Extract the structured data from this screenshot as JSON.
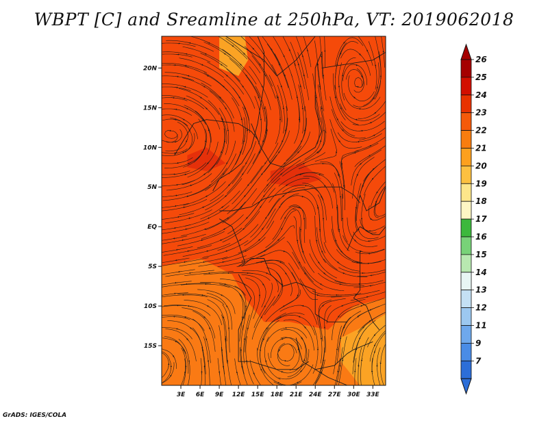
{
  "title": "WBPT [C] and Sreamline at 250hPa, VT: 2019062018",
  "credit": "GrADS: IGES/COLA",
  "map": {
    "lon_range": [
      0,
      35
    ],
    "lat_range": [
      -20,
      24
    ],
    "lat_ticks": [
      {
        "lat": 20,
        "label": "20N"
      },
      {
        "lat": 15,
        "label": "15N"
      },
      {
        "lat": 10,
        "label": "10N"
      },
      {
        "lat": 5,
        "label": "5N"
      },
      {
        "lat": 0,
        "label": "EQ"
      },
      {
        "lat": -5,
        "label": "5S"
      },
      {
        "lat": -10,
        "label": "10S"
      },
      {
        "lat": -15,
        "label": "15S"
      }
    ],
    "lon_ticks": [
      {
        "lon": 3,
        "label": "3E"
      },
      {
        "lon": 6,
        "label": "6E"
      },
      {
        "lon": 9,
        "label": "9E"
      },
      {
        "lon": 12,
        "label": "12E"
      },
      {
        "lon": 15,
        "label": "15E"
      },
      {
        "lon": 18,
        "label": "18E"
      },
      {
        "lon": 21,
        "label": "21E"
      },
      {
        "lon": 24,
        "label": "24E"
      },
      {
        "lon": 27,
        "label": "27E"
      },
      {
        "lon": 30,
        "label": "30E"
      },
      {
        "lon": 33,
        "label": "33E"
      }
    ],
    "field_colors": {
      "dominant": "#f54a0a",
      "warm_core": "#e5300a",
      "cooler_south": "#fa7a14",
      "cool_patch": "#fba324"
    }
  },
  "colorbar": {
    "labels": [
      "26",
      "25",
      "24",
      "23",
      "22",
      "21",
      "20",
      "19",
      "18",
      "17",
      "16",
      "15",
      "14",
      "13",
      "12",
      "11",
      "9",
      "7"
    ],
    "colors": [
      "#a50000",
      "#d20f00",
      "#e83200",
      "#f55a0a",
      "#f87d0f",
      "#fca01e",
      "#fcc040",
      "#fde68a",
      "#fdf6c4",
      "#3cb83c",
      "#78d278",
      "#b8e8b0",
      "#e8f6f4",
      "#c4e0f4",
      "#9cc8f0",
      "#6ea8ec",
      "#4a8ce6",
      "#2c6ed8"
    ],
    "top_arrow_color": "#a50000",
    "bottom_arrow_color": "#2c6ed8"
  }
}
